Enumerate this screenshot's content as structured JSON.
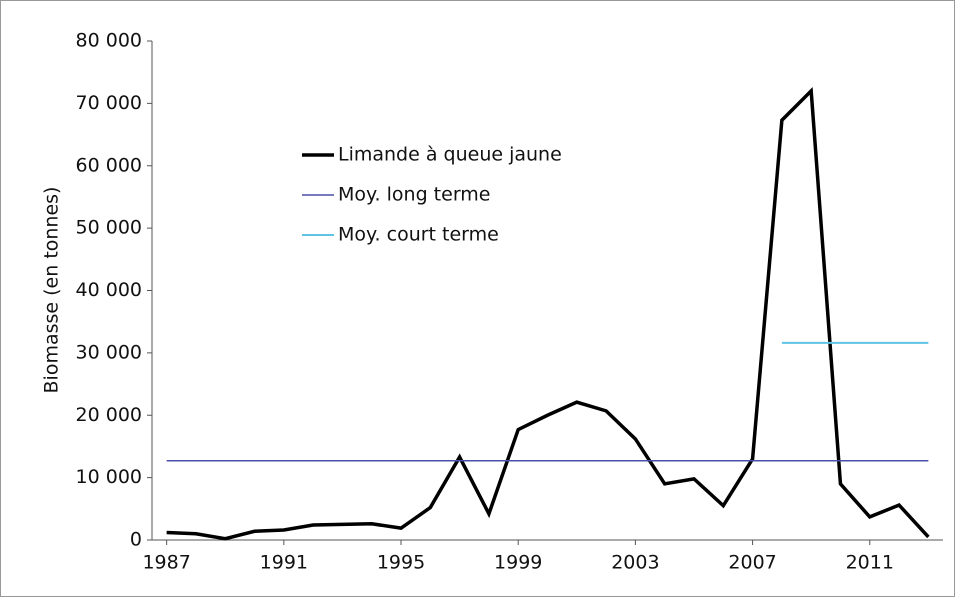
{
  "chart_data": {
    "type": "line",
    "y_label": "Biomasse (en tonnes)",
    "xlim": [
      1986.5,
      2013.5
    ],
    "xticks": [
      1987,
      1991,
      1995,
      1999,
      2003,
      2007,
      2011
    ],
    "ylim": [
      0,
      80000
    ],
    "yticks": [
      0,
      {
        "value": 10000,
        "label": "10 000"
      },
      {
        "value": 20000,
        "label": "20 000"
      },
      {
        "value": 30000,
        "label": "30 000"
      },
      {
        "value": 40000,
        "label": "40 000"
      },
      {
        "value": 50000,
        "label": "50 000"
      },
      {
        "value": 60000,
        "label": "60 000"
      },
      {
        "value": 70000,
        "label": "70 000"
      },
      {
        "value": 80000,
        "label": "80 000"
      }
    ],
    "series": [
      {
        "name": "Limande à queue jaune",
        "color": "#000000",
        "width": 3.5,
        "x": [
          1987,
          1988,
          1989,
          1990,
          1991,
          1992,
          1993,
          1994,
          1995,
          1996,
          1997,
          1998,
          1999,
          2000,
          2001,
          2002,
          2003,
          2004,
          2005,
          2006,
          2007,
          2008,
          2009,
          2010,
          2011,
          2012,
          2013
        ],
        "values": [
          1200,
          1000,
          200,
          1400,
          1600,
          2400,
          2500,
          2600,
          1900,
          5200,
          13300,
          4200,
          17700,
          20000,
          22100,
          20700,
          16200,
          9000,
          9800,
          5500,
          13000,
          67300,
          72000,
          9000,
          3700,
          5600,
          500
        ]
      },
      {
        "name": "Moy. long terme",
        "color": "#4a4fa8",
        "width": 1.5,
        "x": [
          1987,
          2013
        ],
        "values": [
          12700,
          12700
        ]
      },
      {
        "name": "Moy. court terme",
        "color": "#5fc3e4",
        "width": 2,
        "x": [
          2008,
          2013
        ],
        "values": [
          31600,
          31600
        ]
      }
    ]
  }
}
